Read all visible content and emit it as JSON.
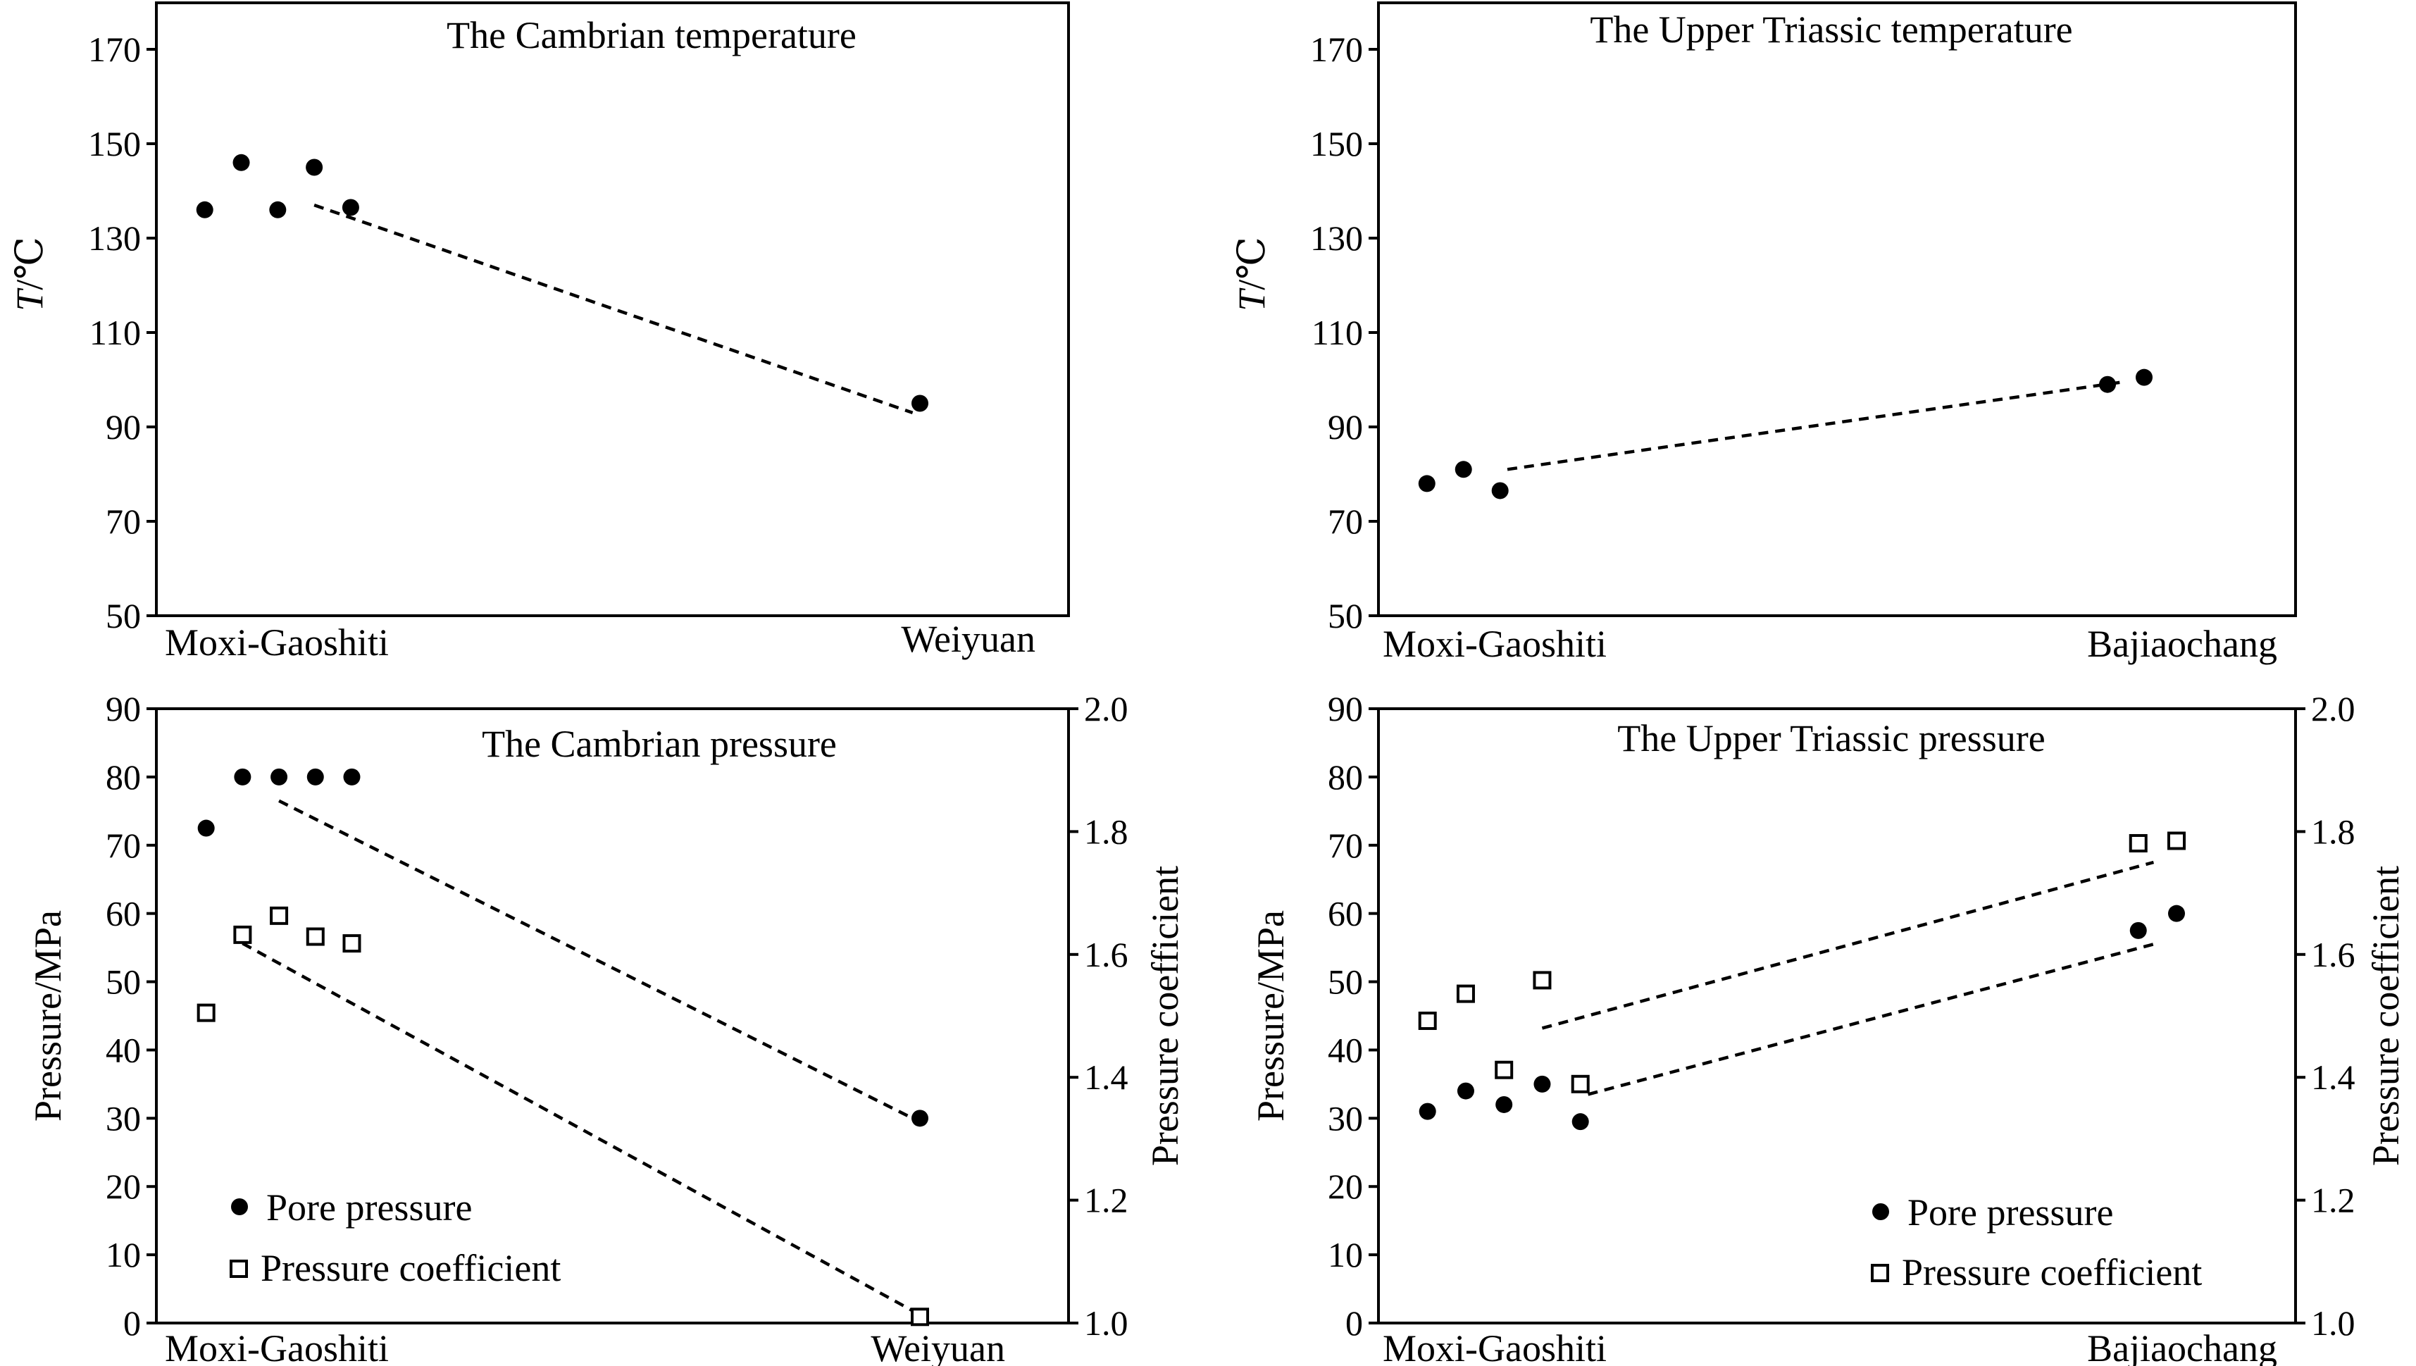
{
  "chart_data": [
    {
      "id": "tl",
      "type": "scatter",
      "title": "The Cambrian temperature",
      "ylabel_italic": "T",
      "ylabel_unit": "/℃",
      "ylim": [
        50,
        180
      ],
      "yticks": [
        50,
        70,
        90,
        110,
        130,
        150,
        170
      ],
      "categories": [
        "Moxi-Gaoshiti",
        "Weiyuan"
      ],
      "series": [
        {
          "name": "Temperature",
          "axis": "left",
          "marker": "dot",
          "x": [
            0.02,
            0.07,
            0.12,
            0.17,
            0.22,
            1.0
          ],
          "values": [
            136,
            146,
            136,
            145,
            136.5,
            95
          ]
        }
      ],
      "trendlines": [
        {
          "axis": "left",
          "from": [
            0.17,
            137
          ],
          "to": [
            0.99,
            93
          ]
        }
      ]
    },
    {
      "id": "tr",
      "type": "scatter",
      "title": "The Upper Triassic temperature",
      "ylabel_italic": "T",
      "ylabel_unit": "/℃",
      "ylim": [
        50,
        180
      ],
      "yticks": [
        50,
        70,
        90,
        110,
        130,
        150,
        170
      ],
      "categories": [
        "Moxi-Gaoshiti",
        "Bajiaochang"
      ],
      "series": [
        {
          "name": "Temperature",
          "axis": "left",
          "marker": "dot",
          "x": [
            0.02,
            0.07,
            0.12,
            0.95,
            1.0
          ],
          "values": [
            78,
            81,
            76.5,
            99,
            100.5
          ]
        }
      ],
      "trendlines": [
        {
          "axis": "left",
          "from": [
            0.13,
            81
          ],
          "to": [
            0.97,
            99.5
          ]
        }
      ]
    },
    {
      "id": "bl",
      "type": "scatter",
      "title": "The Cambrian pressure",
      "ylabel": "Pressure/MPa",
      "y2label": "Pressure coefficient",
      "ylim": [
        0,
        90
      ],
      "yticks": [
        0,
        10,
        20,
        30,
        40,
        50,
        60,
        70,
        80,
        90
      ],
      "y2lim": [
        1.0,
        2.0
      ],
      "y2ticks": [
        "1.0",
        "1.2",
        "1.4",
        "1.6",
        "1.8",
        "2.0"
      ],
      "categories": [
        "Moxi-Gaoshiti",
        "Weiyuan"
      ],
      "legend": [
        "Pore pressure",
        "Pressure coefficient"
      ],
      "legend_position": "bottom-left",
      "series": [
        {
          "name": "Pore pressure",
          "axis": "left",
          "marker": "dot",
          "x": [
            0.02,
            0.07,
            0.12,
            0.17,
            0.22,
            1.0
          ],
          "values": [
            72.5,
            80,
            80,
            80,
            80,
            30
          ]
        },
        {
          "name": "Pressure coefficient",
          "axis": "right",
          "marker": "square",
          "x": [
            0.02,
            0.07,
            0.12,
            0.17,
            0.22,
            1.0
          ],
          "values": [
            1.505,
            1.632,
            1.663,
            1.629,
            1.618,
            1.01
          ]
        }
      ],
      "trendlines": [
        {
          "axis": "left",
          "from": [
            0.12,
            76.5
          ],
          "to": [
            0.99,
            30
          ]
        },
        {
          "axis": "right",
          "from": [
            0.07,
            1.618
          ],
          "to": [
            0.99,
            1.02
          ]
        }
      ]
    },
    {
      "id": "br",
      "type": "scatter",
      "title": "The Upper Triassic pressure",
      "ylabel": "Pressure/MPa",
      "y2label": "Pressure coefficient",
      "ylim": [
        0,
        90
      ],
      "yticks": [
        0,
        10,
        20,
        30,
        40,
        50,
        60,
        70,
        80,
        90
      ],
      "y2lim": [
        1.0,
        2.0
      ],
      "y2ticks": [
        "1.0",
        "1.2",
        "1.4",
        "1.6",
        "1.8",
        "2.0"
      ],
      "categories": [
        "Moxi-Gaoshiti",
        "Bajiaochang"
      ],
      "legend": [
        "Pore pressure",
        "Pressure coefficient"
      ],
      "legend_position": "bottom-right",
      "series": [
        {
          "name": "Pore pressure",
          "axis": "left",
          "marker": "dot",
          "x": [
            0.02,
            0.07,
            0.12,
            0.17,
            0.22,
            0.95,
            1.0
          ],
          "values": [
            31,
            34,
            32,
            35,
            29.5,
            57.5,
            60
          ]
        },
        {
          "name": "Pressure coefficient",
          "axis": "right",
          "marker": "square",
          "x": [
            0.02,
            0.07,
            0.12,
            0.17,
            0.22,
            0.95,
            1.0
          ],
          "values": [
            1.492,
            1.536,
            1.412,
            1.558,
            1.389,
            1.781,
            1.785
          ]
        }
      ],
      "trendlines": [
        {
          "axis": "left",
          "from": [
            0.23,
            33.5
          ],
          "to": [
            0.97,
            55.5
          ]
        },
        {
          "axis": "right",
          "from": [
            0.17,
            1.48
          ],
          "to": [
            0.97,
            1.75
          ]
        }
      ]
    }
  ]
}
